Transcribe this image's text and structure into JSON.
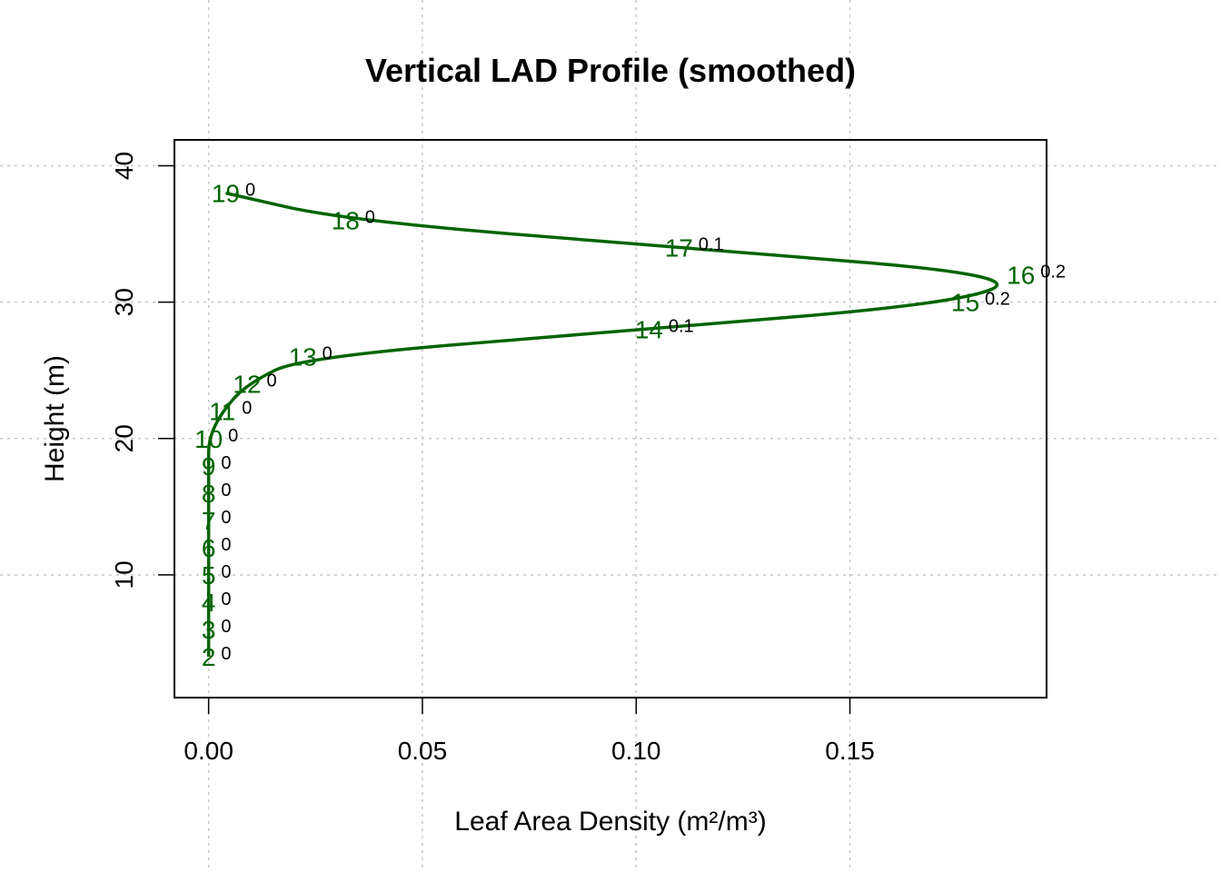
{
  "chart_data": {
    "type": "line",
    "title": "Vertical LAD Profile (smoothed)",
    "xlabel": "Leaf Area Density (m²/m³)",
    "ylabel": "Height (m)",
    "xlim": [
      -0.008,
      0.196
    ],
    "ylim": [
      1.0,
      41.9
    ],
    "xticks": [
      0.0,
      0.05,
      0.1,
      0.15
    ],
    "xtick_labels": [
      "0.00",
      "0.05",
      "0.10",
      "0.15"
    ],
    "yticks": [
      10,
      20,
      30,
      40
    ],
    "ytick_labels": [
      "10",
      "20",
      "30",
      "40"
    ],
    "grid": true,
    "line_color": "#006400",
    "points": [
      {
        "label": "2",
        "x": 0.0,
        "y": 4,
        "value_label": "0"
      },
      {
        "label": "3",
        "x": 0.0,
        "y": 6,
        "value_label": "0"
      },
      {
        "label": "4",
        "x": 0.0,
        "y": 8,
        "value_label": "0"
      },
      {
        "label": "5",
        "x": 0.0,
        "y": 10,
        "value_label": "0"
      },
      {
        "label": "6",
        "x": 0.0,
        "y": 12,
        "value_label": "0"
      },
      {
        "label": "7",
        "x": 0.0,
        "y": 14,
        "value_label": "0"
      },
      {
        "label": "8",
        "x": 0.0,
        "y": 16,
        "value_label": "0"
      },
      {
        "label": "9",
        "x": 0.0,
        "y": 18,
        "value_label": "0"
      },
      {
        "label": "10",
        "x": 0.0,
        "y": 20,
        "value_label": "0"
      },
      {
        "label": "11",
        "x": 0.0032,
        "y": 22,
        "value_label": "0"
      },
      {
        "label": "12",
        "x": 0.009,
        "y": 24,
        "value_label": "0"
      },
      {
        "label": "13",
        "x": 0.022,
        "y": 26,
        "value_label": "0"
      },
      {
        "label": "14",
        "x": 0.103,
        "y": 28,
        "value_label": "0.1"
      },
      {
        "label": "15",
        "x": 0.177,
        "y": 30,
        "value_label": "0.2"
      },
      {
        "label": "16",
        "x": 0.19,
        "y": 32,
        "value_label": "0.2"
      },
      {
        "label": "17",
        "x": 0.11,
        "y": 34,
        "value_label": "0.1"
      },
      {
        "label": "18",
        "x": 0.032,
        "y": 36,
        "value_label": "0"
      },
      {
        "label": "19",
        "x": 0.004,
        "y": 38,
        "value_label": "0"
      }
    ]
  }
}
